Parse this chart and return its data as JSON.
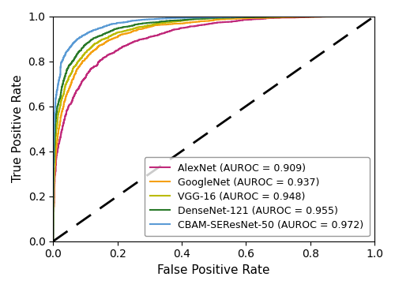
{
  "title": "",
  "xlabel": "False Positive Rate",
  "ylabel": "True Positive Rate",
  "models": [
    {
      "name": "AlexNet (AUROC = 0.909)",
      "auroc": 0.909,
      "color": "#C0297A",
      "lw": 1.5,
      "seed": 1
    },
    {
      "name": "GoogleNet (AUROC = 0.937)",
      "auroc": 0.937,
      "color": "#F5A010",
      "lw": 1.5,
      "seed": 2
    },
    {
      "name": "VGG-16 (AUROC = 0.948)",
      "auroc": 0.948,
      "color": "#BBBB00",
      "lw": 1.5,
      "seed": 3
    },
    {
      "name": "DenseNet-121 (AUROC = 0.955)",
      "auroc": 0.955,
      "color": "#2A7A2A",
      "lw": 1.5,
      "seed": 4
    },
    {
      "name": "CBAM-SEResNet-50 (AUROC = 0.972)",
      "auroc": 0.972,
      "color": "#5B9BD5",
      "lw": 1.5,
      "seed": 5
    }
  ],
  "diagonal_color": "black",
  "diagonal_lw": 2.0,
  "xlim": [
    0.0,
    1.0
  ],
  "ylim": [
    0.0,
    1.0
  ],
  "legend_loc": "lower right",
  "legend_fontsize": 9,
  "axis_label_fontsize": 11,
  "tick_fontsize": 10,
  "figsize": [
    5.0,
    3.65
  ],
  "dpi": 100
}
